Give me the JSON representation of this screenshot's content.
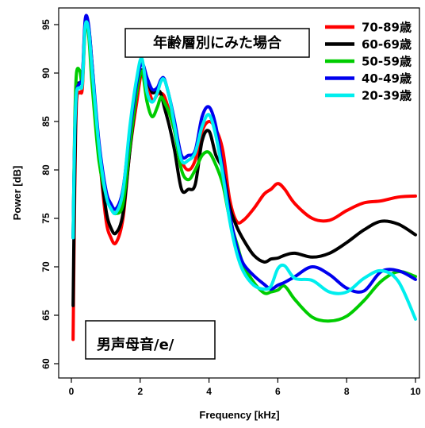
{
  "chart_data": {
    "type": "line",
    "title": "",
    "xlabel": "Frequency [kHz]",
    "ylabel": "Power [dB]",
    "xlim": [
      0,
      10
    ],
    "ylim": [
      59,
      96
    ],
    "xticks": [
      0,
      2,
      4,
      6,
      8,
      10
    ],
    "yticks": [
      60,
      65,
      70,
      75,
      80,
      85,
      90,
      95
    ],
    "grid": false,
    "legend_position": "top-right",
    "annotations": [
      "年齢層別にみた場合",
      "男声母音/e/"
    ],
    "series": [
      {
        "name": "70-89歳",
        "color": "#ff0000",
        "x": [
          0.05,
          0.1,
          0.15,
          0.25,
          0.32,
          0.4,
          0.5,
          0.6,
          0.8,
          1.0,
          1.15,
          1.3,
          1.5,
          1.7,
          1.9,
          2.05,
          2.2,
          2.35,
          2.5,
          2.6,
          2.7,
          2.85,
          3.0,
          3.2,
          3.4,
          3.6,
          3.8,
          4.0,
          4.2,
          4.4,
          4.6,
          4.8,
          5.0,
          5.3,
          5.6,
          5.8,
          6.0,
          6.2,
          6.5,
          7.0,
          7.5,
          8.0,
          8.5,
          9.0,
          9.5,
          10.0
        ],
        "y": [
          62.5,
          78,
          87,
          88,
          88.5,
          94.5,
          94.2,
          90,
          82,
          75,
          73,
          72.5,
          75,
          82,
          87,
          90.2,
          89,
          87.2,
          87.8,
          87.9,
          87.6,
          86,
          84,
          81,
          80,
          81,
          84,
          85,
          84.2,
          82,
          77,
          74.7,
          74.8,
          76,
          77.5,
          78,
          78.6,
          78,
          76.5,
          75,
          74.8,
          75.8,
          76.6,
          76.8,
          77.2,
          77.3
        ]
      },
      {
        "name": "60-69歳",
        "color": "#000000",
        "x": [
          0.05,
          0.1,
          0.15,
          0.25,
          0.32,
          0.4,
          0.5,
          0.6,
          0.8,
          1.0,
          1.15,
          1.3,
          1.5,
          1.7,
          1.9,
          2.05,
          2.2,
          2.35,
          2.5,
          2.6,
          2.7,
          2.85,
          3.0,
          3.2,
          3.4,
          3.6,
          3.8,
          4.0,
          4.2,
          4.4,
          4.6,
          4.8,
          5.0,
          5.3,
          5.6,
          5.8,
          6.0,
          6.2,
          6.5,
          7.0,
          7.5,
          8.0,
          8.5,
          9.0,
          9.5,
          10.0
        ],
        "y": [
          66,
          80,
          88,
          89,
          89.5,
          95,
          94.8,
          91,
          82,
          76,
          74,
          73.5,
          75.5,
          82,
          88,
          90.3,
          89.3,
          88,
          88.2,
          87.9,
          86.5,
          84.5,
          82,
          78,
          78,
          78.5,
          83,
          84,
          81.5,
          80,
          76.2,
          74.2,
          72.8,
          71.2,
          70.5,
          70.8,
          70.9,
          71.2,
          71.4,
          71,
          71.4,
          72.5,
          73.8,
          74.7,
          74.4,
          73.3
        ]
      },
      {
        "name": "50-59歳",
        "color": "#00cc00",
        "x": [
          0.05,
          0.1,
          0.15,
          0.25,
          0.32,
          0.4,
          0.5,
          0.6,
          0.8,
          1.0,
          1.15,
          1.3,
          1.5,
          1.7,
          1.9,
          2.05,
          2.2,
          2.35,
          2.5,
          2.6,
          2.7,
          2.85,
          3.0,
          3.2,
          3.4,
          3.6,
          3.8,
          4.0,
          4.2,
          4.4,
          4.6,
          4.8,
          5.0,
          5.3,
          5.6,
          5.8,
          6.0,
          6.2,
          6.5,
          7.0,
          7.5,
          8.0,
          8.5,
          9.0,
          9.5,
          10.0
        ],
        "y": [
          73,
          85,
          90,
          90.2,
          89,
          94.8,
          94,
          89,
          81,
          77.5,
          76,
          75.5,
          76.5,
          82.5,
          88,
          90.2,
          87,
          85.5,
          86.5,
          87.5,
          87,
          85.8,
          84,
          80,
          79,
          80,
          81.5,
          81.8,
          80.5,
          78.5,
          75,
          72.5,
          70.2,
          68.4,
          67.3,
          67.4,
          67.6,
          68,
          66.6,
          64.8,
          64.4,
          64.9,
          66.5,
          68.5,
          69.5,
          69
        ]
      },
      {
        "name": "40-49歳",
        "color": "#0000ee",
        "x": [
          0.05,
          0.1,
          0.15,
          0.25,
          0.32,
          0.4,
          0.5,
          0.6,
          0.8,
          1.0,
          1.15,
          1.3,
          1.5,
          1.7,
          1.9,
          2.05,
          2.2,
          2.35,
          2.5,
          2.6,
          2.7,
          2.85,
          3.0,
          3.2,
          3.4,
          3.6,
          3.8,
          4.0,
          4.2,
          4.4,
          4.6,
          4.8,
          5.0,
          5.3,
          5.6,
          5.8,
          6.0,
          6.2,
          6.5,
          7.0,
          7.5,
          8.0,
          8.5,
          9.0,
          9.5,
          10.0
        ],
        "y": [
          73,
          84,
          88,
          89,
          89.5,
          95.5,
          95,
          91,
          83,
          78,
          76.5,
          76,
          78,
          84,
          89,
          91,
          89.5,
          88.3,
          88.5,
          89.3,
          89.4,
          87.5,
          85,
          81.5,
          81.5,
          82,
          85.5,
          86.5,
          84.5,
          80,
          75.5,
          72.2,
          70.3,
          69.1,
          68.2,
          67.7,
          68.1,
          68.4,
          69,
          70,
          69.2,
          67.8,
          67.5,
          69.5,
          69.6,
          68.7
        ]
      },
      {
        "name": "20-39歳",
        "color": "#00eeee",
        "x": [
          0.05,
          0.1,
          0.15,
          0.25,
          0.32,
          0.4,
          0.5,
          0.6,
          0.8,
          1.0,
          1.15,
          1.3,
          1.5,
          1.7,
          1.9,
          2.05,
          2.2,
          2.35,
          2.5,
          2.6,
          2.7,
          2.85,
          3.0,
          3.2,
          3.4,
          3.6,
          3.8,
          4.0,
          4.2,
          4.4,
          4.6,
          4.8,
          5.0,
          5.3,
          5.6,
          5.8,
          6.0,
          6.2,
          6.5,
          7.0,
          7.5,
          8.0,
          8.5,
          9.0,
          9.5,
          10.0
        ],
        "y": [
          73,
          84,
          88,
          88.5,
          89,
          94.8,
          94.5,
          90.5,
          82.5,
          77.5,
          76,
          75.6,
          77.8,
          84.5,
          89.5,
          91.5,
          88,
          87,
          88,
          89.1,
          89.3,
          87.5,
          84.5,
          81,
          81,
          81.8,
          84.5,
          85.7,
          83.5,
          79.5,
          74.8,
          71.5,
          69.5,
          68.1,
          67.7,
          68,
          69.8,
          70.1,
          68.8,
          68.6,
          67.4,
          67.4,
          68.8,
          69.6,
          68.5,
          64.6
        ]
      }
    ]
  },
  "legend_title_box": {
    "label": "年齢層別にみた場合"
  },
  "vowel_box": {
    "label": "男声母音/e/"
  }
}
